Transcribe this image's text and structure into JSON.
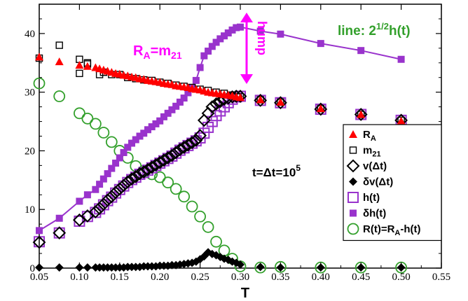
{
  "chart_data": {
    "type": "scatter",
    "xlabel": "T",
    "ylabel": "",
    "xlim": [
      0.05,
      0.55
    ],
    "ylim": [
      0,
      45
    ],
    "x_ticks": [
      "0.05",
      "0.10",
      "0.15",
      "0.20",
      "0.25",
      "0.30",
      "0.35",
      "0.40",
      "0.45",
      "0.50",
      "0.55"
    ],
    "y_ticks": [
      "0",
      "10",
      "20",
      "30",
      "40"
    ],
    "legend_position": "right",
    "colors": {
      "RA": "#ff0000",
      "m21": "#000000",
      "v": "#000000",
      "dv": "#000000",
      "h": "#9933cc",
      "dh": "#9933cc",
      "R": "#33a02c",
      "annotation_magenta": "#ff00ff",
      "annotation_green": "#33a02c"
    },
    "annotations": {
      "ra_label": "R",
      "ra_sub": "A",
      "ra_eq": "=m",
      "ra_eq_sub": "21",
      "hump": "hump",
      "line_label": "line: 2",
      "line_sup": "1/2",
      "line_label_end": "h(t)",
      "t_label": "t=Δt=10",
      "t_sup": "5"
    },
    "series": [
      {
        "name": "R_A",
        "legend_main": "R",
        "legend_sub": "A",
        "marker": "triangle-filled",
        "x": [
          0.05,
          0.075,
          0.1,
          0.11,
          0.12,
          0.125,
          0.13,
          0.135,
          0.14,
          0.145,
          0.15,
          0.155,
          0.16,
          0.165,
          0.17,
          0.175,
          0.18,
          0.185,
          0.19,
          0.195,
          0.2,
          0.205,
          0.21,
          0.215,
          0.22,
          0.225,
          0.23,
          0.235,
          0.24,
          0.245,
          0.25,
          0.255,
          0.26,
          0.265,
          0.27,
          0.275,
          0.28,
          0.285,
          0.29,
          0.295,
          0.3,
          0.325,
          0.35,
          0.4,
          0.45,
          0.5
        ],
        "y": [
          36.0,
          35.2,
          34.6,
          34.4,
          34.2,
          34.0,
          33.8,
          33.6,
          33.4,
          33.2,
          33.1,
          32.9,
          32.8,
          32.6,
          32.5,
          32.3,
          32.2,
          32.0,
          31.9,
          31.8,
          31.7,
          31.5,
          31.4,
          31.3,
          31.1,
          31.0,
          30.9,
          30.8,
          30.6,
          30.5,
          30.4,
          30.2,
          30.0,
          29.9,
          29.8,
          29.7,
          29.6,
          29.5,
          29.4,
          29.2,
          29.1,
          28.7,
          28.3,
          27.2,
          26.2,
          25.1
        ]
      },
      {
        "name": "m_21",
        "legend_main": "m",
        "legend_sub": "21",
        "marker": "square-open-small",
        "x": [
          0.05,
          0.075,
          0.1,
          0.1,
          0.11,
          0.11,
          0.125,
          0.13,
          0.14,
          0.15,
          0.16,
          0.17,
          0.18,
          0.19,
          0.2,
          0.21,
          0.22,
          0.23,
          0.24,
          0.25,
          0.26,
          0.27,
          0.28,
          0.29,
          0.3,
          0.325,
          0.35,
          0.4,
          0.45,
          0.5
        ],
        "y": [
          35.8,
          38.0,
          35.6,
          33.2,
          35.0,
          34.8,
          33.0,
          33.4,
          33.0,
          33.0,
          32.5,
          32.3,
          32.1,
          32.0,
          31.7,
          31.5,
          31.2,
          31.0,
          30.8,
          30.5,
          30.3,
          30.0,
          29.8,
          29.5,
          29.2,
          28.7,
          28.3,
          27.2,
          26.2,
          25.2
        ]
      },
      {
        "name": "v(Δt)",
        "legend_main": "v(Δt)",
        "marker": "diamond-open",
        "x": [
          0.05,
          0.075,
          0.1,
          0.11,
          0.12,
          0.125,
          0.13,
          0.135,
          0.14,
          0.145,
          0.15,
          0.155,
          0.16,
          0.165,
          0.17,
          0.175,
          0.18,
          0.185,
          0.19,
          0.195,
          0.2,
          0.205,
          0.21,
          0.215,
          0.22,
          0.225,
          0.23,
          0.235,
          0.24,
          0.245,
          0.25,
          0.255,
          0.26,
          0.265,
          0.27,
          0.275,
          0.28,
          0.285,
          0.29,
          0.295,
          0.3,
          0.325,
          0.35,
          0.4,
          0.45,
          0.5
        ],
        "y": [
          4.4,
          6.0,
          8.2,
          8.9,
          9.6,
          10.2,
          10.9,
          11.6,
          12.2,
          12.9,
          13.5,
          14.1,
          14.7,
          15.2,
          15.6,
          16.1,
          16.4,
          16.8,
          17.2,
          17.6,
          18.0,
          18.4,
          18.8,
          19.2,
          19.7,
          20.2,
          20.6,
          21.0,
          21.4,
          21.8,
          22.6,
          25.2,
          26.4,
          27.5,
          28.0,
          28.4,
          28.8,
          29.0,
          29.2,
          29.3,
          29.3,
          28.6,
          28.2,
          27.1,
          26.2,
          25.2
        ]
      },
      {
        "name": "δv(Δt)",
        "legend_main": "δv(Δt)",
        "marker": "diamond-filled",
        "x": [
          0.05,
          0.075,
          0.1,
          0.11,
          0.12,
          0.125,
          0.13,
          0.135,
          0.14,
          0.145,
          0.15,
          0.155,
          0.16,
          0.165,
          0.17,
          0.175,
          0.18,
          0.185,
          0.19,
          0.195,
          0.2,
          0.205,
          0.21,
          0.215,
          0.22,
          0.225,
          0.23,
          0.235,
          0.24,
          0.245,
          0.25,
          0.255,
          0.26,
          0.265,
          0.27,
          0.275,
          0.28,
          0.285,
          0.29,
          0.295,
          0.3,
          0.325,
          0.35,
          0.4,
          0.45,
          0.5
        ],
        "y": [
          0.1,
          0.1,
          0.1,
          0.1,
          0.1,
          0.1,
          0.1,
          0.1,
          0.1,
          0.1,
          0.1,
          0.1,
          0.2,
          0.2,
          0.2,
          0.2,
          0.3,
          0.3,
          0.3,
          0.3,
          0.4,
          0.4,
          0.4,
          0.5,
          0.5,
          0.6,
          0.7,
          0.8,
          0.9,
          1.1,
          1.5,
          2.0,
          2.7,
          2.4,
          2.2,
          1.9,
          1.6,
          1.4,
          1.1,
          0.9,
          0.6,
          0.2,
          0.1,
          0.1,
          0.1,
          0.1
        ]
      },
      {
        "name": "h(t)",
        "legend_main": "h(t)",
        "marker": "square-open-large",
        "x": [
          0.05,
          0.075,
          0.1,
          0.11,
          0.12,
          0.125,
          0.13,
          0.135,
          0.14,
          0.145,
          0.15,
          0.155,
          0.16,
          0.165,
          0.17,
          0.175,
          0.18,
          0.185,
          0.19,
          0.195,
          0.2,
          0.205,
          0.21,
          0.215,
          0.22,
          0.225,
          0.23,
          0.235,
          0.24,
          0.245,
          0.25,
          0.255,
          0.26,
          0.265,
          0.27,
          0.275,
          0.28,
          0.285,
          0.29,
          0.295,
          0.3,
          0.325,
          0.35,
          0.4,
          0.45,
          0.5
        ],
        "y": [
          4.5,
          6.0,
          8.0,
          8.8,
          9.5,
          10.1,
          10.8,
          11.5,
          12.1,
          12.8,
          13.4,
          14.0,
          14.6,
          15.1,
          15.5,
          16.0,
          16.3,
          16.7,
          17.1,
          17.5,
          17.9,
          18.3,
          18.7,
          19.1,
          19.6,
          20.1,
          20.5,
          20.9,
          21.3,
          21.7,
          22.2,
          23.0,
          24.0,
          25.0,
          26.0,
          26.8,
          27.5,
          28.2,
          28.8,
          29.2,
          29.3,
          28.6,
          28.2,
          27.1,
          26.2,
          25.2
        ]
      },
      {
        "name": "δh(t)",
        "legend_main": "δh(t)",
        "marker": "square-filled-line",
        "x": [
          0.05,
          0.075,
          0.1,
          0.11,
          0.12,
          0.125,
          0.13,
          0.135,
          0.14,
          0.145,
          0.15,
          0.155,
          0.16,
          0.165,
          0.17,
          0.175,
          0.18,
          0.185,
          0.19,
          0.195,
          0.2,
          0.205,
          0.21,
          0.215,
          0.22,
          0.225,
          0.23,
          0.235,
          0.24,
          0.245,
          0.25,
          0.255,
          0.26,
          0.265,
          0.27,
          0.275,
          0.28,
          0.285,
          0.29,
          0.295,
          0.3,
          0.325,
          0.35,
          0.4,
          0.45,
          0.5
        ],
        "y": [
          6.4,
          8.5,
          11.4,
          12.5,
          13.4,
          14.3,
          15.2,
          16.1,
          17.0,
          17.9,
          18.8,
          19.7,
          20.6,
          21.3,
          21.9,
          22.5,
          23.0,
          23.6,
          24.1,
          24.6,
          25.1,
          25.8,
          26.4,
          27.0,
          27.6,
          28.3,
          29.0,
          29.9,
          30.8,
          32.0,
          34.2,
          36.2,
          37.0,
          37.8,
          38.5,
          39.1,
          39.6,
          40.1,
          40.6,
          41.0,
          41.1,
          40.4,
          39.9,
          38.3,
          37.1,
          35.6
        ]
      },
      {
        "name": "R(t)=R_A-h(t)",
        "legend_main": "R(t)=R",
        "legend_sub": "A",
        "legend_end": "-h(t)",
        "marker": "circle-open",
        "x": [
          0.05,
          0.075,
          0.1,
          0.11,
          0.12,
          0.13,
          0.14,
          0.15,
          0.16,
          0.17,
          0.18,
          0.19,
          0.2,
          0.21,
          0.22,
          0.23,
          0.24,
          0.25,
          0.26,
          0.27,
          0.28,
          0.29,
          0.3,
          0.325,
          0.35,
          0.4,
          0.45,
          0.5
        ],
        "y": [
          31.5,
          29.3,
          26.4,
          25.5,
          24.6,
          23.1,
          21.5,
          20.0,
          18.8,
          17.4,
          16.6,
          16.0,
          15.5,
          14.6,
          13.5,
          12.2,
          10.5,
          8.8,
          7.0,
          4.5,
          3.0,
          1.6,
          0.3,
          0.1,
          0.2,
          0.1,
          0.1,
          0.1
        ]
      }
    ]
  }
}
